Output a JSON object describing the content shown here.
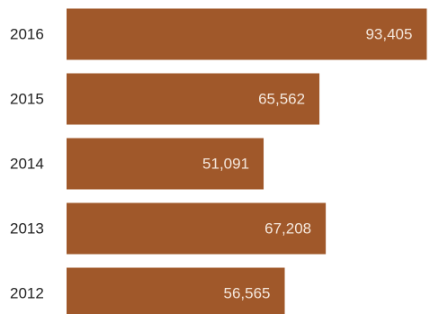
{
  "chart_data": {
    "type": "bar",
    "orientation": "horizontal",
    "categories": [
      "2016",
      "2015",
      "2014",
      "2013",
      "2012"
    ],
    "values": [
      93405,
      65562,
      51091,
      67208,
      56565
    ],
    "value_labels": [
      "93,405",
      "65,562",
      "51,091",
      "67,208",
      "56,565"
    ],
    "title": "",
    "xlabel": "",
    "ylabel": "",
    "xlim": [
      0,
      94000
    ],
    "grid": false,
    "legend": "none",
    "bar_color": "#a0582a"
  }
}
